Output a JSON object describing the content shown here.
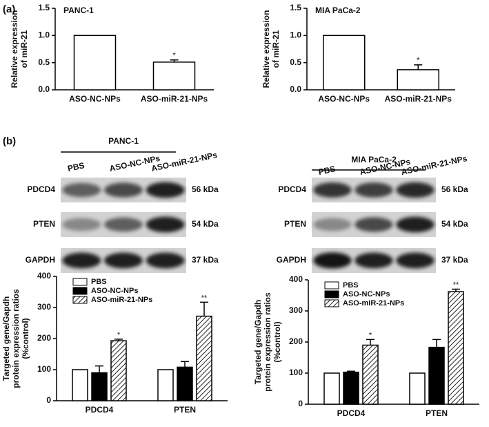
{
  "panel_labels": [
    "(a)",
    "(b)"
  ],
  "blots": [
    {
      "title": "PANC-1",
      "lanes": [
        "PBS",
        "ASO-NC-NPs",
        "ASO-miR-21-NPs"
      ],
      "rows": [
        {
          "protein": "PDCD4",
          "size": "56 kDa"
        },
        {
          "protein": "PTEN",
          "size": "54 kDa"
        },
        {
          "protein": "GAPDH",
          "size": "37 kDa"
        }
      ]
    },
    {
      "title": "MIA PaCa-2",
      "lanes": [
        "PBS",
        "ASO-NC-NPs",
        "ASO-miR-21-NPs"
      ],
      "rows": [
        {
          "protein": "PDCD4",
          "size": "56 kDa"
        },
        {
          "protein": "PTEN",
          "size": "54 kDa"
        },
        {
          "protein": "GAPDH",
          "size": "37 kDa"
        }
      ]
    }
  ],
  "chart_data": [
    {
      "type": "bar",
      "title": "PANC-1",
      "ylabel": [
        "Relative expression",
        "of miR-21"
      ],
      "categories": [
        "ASO-NC-NPs",
        "ASO-miR-21-NPs"
      ],
      "values": [
        1.0,
        0.51
      ],
      "errors": [
        0,
        0.04
      ],
      "significance": [
        null,
        "*"
      ],
      "color": "#ffffff",
      "ylim": [
        0,
        1.5
      ],
      "yticks": [
        {
          "value": 0,
          "label": "0.0"
        },
        0.5,
        {
          "value": 1,
          "label": "1.0"
        },
        1.5
      ]
    },
    {
      "type": "bar",
      "title": "MIA PaCa-2",
      "ylabel": [
        "Relative expression",
        "of miR-21"
      ],
      "categories": [
        "ASO-NC-NPs",
        "ASO-miR-21-NPs"
      ],
      "values": [
        1.0,
        0.37
      ],
      "errors": [
        0,
        0.09
      ],
      "significance": [
        null,
        "*"
      ],
      "color": "#ffffff",
      "ylim": [
        0,
        1.5
      ],
      "yticks": [
        {
          "value": 0,
          "label": "0.0"
        },
        0.5,
        {
          "value": 1,
          "label": "1.0"
        },
        1.5
      ]
    },
    {
      "type": "bar",
      "ylabel": [
        "Targeted gene/Gapdh",
        "protein expression ratios",
        "(%control)"
      ],
      "categories": [
        "PDCD4",
        "PTEN"
      ],
      "ylim": [
        0,
        400
      ],
      "yticks": [
        0,
        100,
        200,
        300,
        400
      ],
      "series": [
        {
          "name": "PBS",
          "color": "#ffffff",
          "values": [
            100,
            100
          ],
          "errors": [
            0,
            0
          ],
          "significance": [
            null,
            null
          ]
        },
        {
          "name": "ASO-NC-NPs",
          "color": "#000000",
          "values": [
            90,
            108
          ],
          "errors": [
            22,
            18
          ],
          "significance": [
            null,
            null
          ]
        },
        {
          "name": "ASO-miR-21-NPs",
          "color": "#ffffff",
          "pattern": "hatch",
          "values": [
            193,
            272
          ],
          "errors": [
            5,
            45
          ],
          "significance": [
            "*",
            "**"
          ]
        }
      ]
    },
    {
      "type": "bar",
      "ylabel": [
        "Targeted gene/Gapdh",
        "protein expression ratios",
        "(%control)"
      ],
      "categories": [
        "PDCD4",
        "PTEN"
      ],
      "ylim": [
        0,
        400
      ],
      "yticks": [
        0,
        100,
        200,
        300,
        400
      ],
      "series": [
        {
          "name": "PBS",
          "color": "#ffffff",
          "values": [
            100,
            100
          ],
          "errors": [
            0,
            0
          ],
          "significance": [
            null,
            null
          ]
        },
        {
          "name": "ASO-NC-NPs",
          "color": "#000000",
          "values": [
            103,
            183
          ],
          "errors": [
            3,
            25
          ],
          "significance": [
            null,
            null
          ]
        },
        {
          "name": "ASO-miR-21-NPs",
          "color": "#ffffff",
          "pattern": "hatch",
          "values": [
            190,
            362
          ],
          "errors": [
            18,
            8
          ],
          "significance": [
            "*",
            "**"
          ]
        }
      ]
    }
  ]
}
